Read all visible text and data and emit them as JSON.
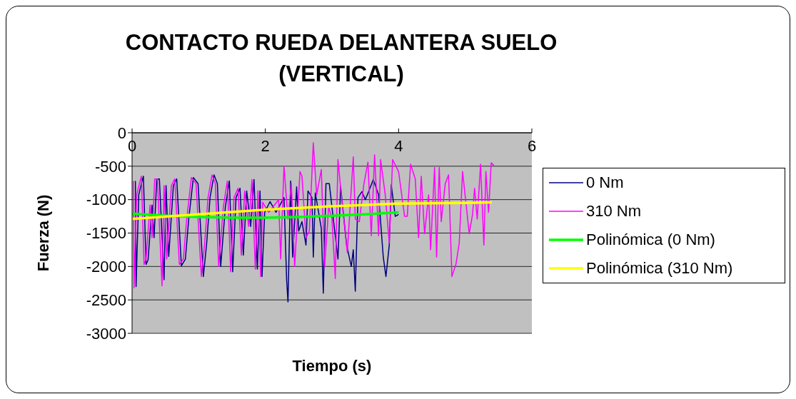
{
  "chart_data": {
    "type": "line",
    "title": "CONTACTO RUEDA DELANTERA SUELO (VERTICAL)",
    "xlabel": "Tiempo (s)",
    "ylabel": "Fuerza (N)",
    "xlim": [
      0,
      6
    ],
    "xticks": [
      0,
      2,
      4,
      6
    ],
    "ylim": [
      -3000,
      0
    ],
    "yticks": [
      0,
      -500,
      -1000,
      -1500,
      -2000,
      -2500,
      -3000
    ],
    "grid": "y",
    "legend": "right",
    "marker": "none",
    "line_style": "solid",
    "series": [
      {
        "name": "0 Nm",
        "color": "#000080",
        "x": [
          0.05,
          0.06,
          0.1,
          0.14,
          0.17,
          0.21,
          0.24,
          0.3,
          0.33,
          0.37,
          0.41,
          0.48,
          0.51,
          0.55,
          0.62,
          0.67,
          0.74,
          0.8,
          0.85,
          0.92,
          0.99,
          1.07,
          1.12,
          1.17,
          1.23,
          1.28,
          1.33,
          1.4,
          1.46,
          1.51,
          1.56,
          1.62,
          1.67,
          1.72,
          1.78,
          1.83,
          1.88,
          1.92,
          1.95,
          1.99,
          2.07,
          2.16,
          2.28,
          2.32,
          2.34,
          2.38,
          2.41,
          2.47,
          2.5,
          2.55,
          2.61,
          2.64,
          2.7,
          2.72,
          2.75,
          2.84,
          2.87,
          2.91,
          2.96,
          3.02,
          3.09,
          3.13,
          3.22,
          3.29,
          3.32,
          3.35,
          3.39,
          3.45,
          3.5,
          3.55,
          3.62,
          3.7,
          3.77,
          3.81,
          3.86,
          3.89,
          3.95,
          4.0
        ],
        "values": [
          -720,
          -2300,
          -930,
          -760,
          -650,
          -1970,
          -1900,
          -1080,
          -1570,
          -690,
          -690,
          -2200,
          -790,
          -1850,
          -790,
          -690,
          -1990,
          -1890,
          -1290,
          -670,
          -760,
          -2150,
          -1650,
          -970,
          -630,
          -760,
          -2000,
          -1110,
          -720,
          -2080,
          -970,
          -830,
          -1830,
          -870,
          -1400,
          -700,
          -2040,
          -870,
          -2150,
          -1190,
          -1030,
          -1190,
          -970,
          -2210,
          -2530,
          -720,
          -1860,
          -810,
          -1470,
          -1330,
          -1680,
          -870,
          -970,
          -1860,
          -900,
          -1430,
          -2400,
          -760,
          -760,
          -1290,
          -1890,
          -810,
          -1680,
          -2000,
          -1750,
          -2370,
          -970,
          -880,
          -1000,
          -880,
          -700,
          -930,
          -1860,
          -2150,
          -1680,
          -780,
          -1250,
          -1220
        ]
      },
      {
        "name": "310 Nm",
        "color": "#ff00ff",
        "x": [
          0.02,
          0.03,
          0.07,
          0.11,
          0.14,
          0.18,
          0.21,
          0.27,
          0.3,
          0.34,
          0.38,
          0.45,
          0.48,
          0.52,
          0.59,
          0.64,
          0.71,
          0.77,
          0.82,
          0.89,
          0.96,
          1.04,
          1.09,
          1.14,
          1.2,
          1.25,
          1.3,
          1.37,
          1.43,
          1.48,
          1.53,
          1.59,
          1.64,
          1.69,
          1.75,
          1.8,
          1.85,
          1.89,
          1.93,
          1.96,
          2.05,
          2.2,
          2.23,
          2.28,
          2.34,
          2.39,
          2.44,
          2.52,
          2.55,
          2.61,
          2.66,
          2.72,
          2.77,
          2.84,
          2.89,
          2.95,
          3.0,
          3.05,
          3.09,
          3.14,
          3.23,
          3.32,
          3.35,
          3.41,
          3.48,
          3.54,
          3.59,
          3.64,
          3.7,
          3.73,
          3.8,
          3.86,
          3.91,
          4.0,
          4.09,
          4.13,
          4.18,
          4.25,
          4.3,
          4.34,
          4.39,
          4.45,
          4.48,
          4.54,
          4.57,
          4.61,
          4.64,
          4.7,
          4.75,
          4.8,
          4.86,
          4.91,
          4.96,
          5.06,
          5.11,
          5.14,
          5.18,
          5.23,
          5.28,
          5.31,
          5.35,
          5.39,
          5.43
        ],
        "values": [
          -720,
          -2320,
          -930,
          -760,
          -650,
          -1970,
          -1890,
          -1080,
          -1570,
          -690,
          -690,
          -2290,
          -790,
          -1890,
          -790,
          -690,
          -1970,
          -1890,
          -1290,
          -670,
          -760,
          -2150,
          -1650,
          -970,
          -630,
          -760,
          -2000,
          -1110,
          -720,
          -2080,
          -970,
          -830,
          -1830,
          -870,
          -1400,
          -700,
          -2040,
          -870,
          -2150,
          -1040,
          -1190,
          -1000,
          -1890,
          -500,
          -1290,
          -760,
          -2000,
          -580,
          -650,
          -1570,
          -1470,
          -150,
          -930,
          -550,
          -2000,
          -1110,
          -1290,
          -2180,
          -400,
          -930,
          -1790,
          -360,
          -1290,
          -1330,
          -760,
          -440,
          -1540,
          -330,
          -1540,
          -400,
          -930,
          -1650,
          -400,
          -580,
          -1250,
          -1250,
          -470,
          -690,
          -1570,
          -650,
          -1510,
          -930,
          -1750,
          -520,
          -1860,
          -520,
          -1330,
          -760,
          -630,
          -2150,
          -1970,
          -1650,
          -580,
          -1510,
          -1220,
          -830,
          -1290,
          -470,
          -1680,
          -580,
          -1190,
          -450,
          -490
        ]
      },
      {
        "name": "Polinómica (0 Nm)",
        "color": "#00ff00",
        "x": [
          0,
          0.5,
          1,
          1.5,
          2,
          2.5,
          3,
          3.5,
          4
        ],
        "values": [
          -1210,
          -1240,
          -1260,
          -1270,
          -1270,
          -1260,
          -1240,
          -1220,
          -1190
        ]
      },
      {
        "name": "Polinómica (310 Nm)",
        "color": "#ffff00",
        "x": [
          0,
          1,
          2,
          3,
          4,
          5,
          5.4
        ],
        "values": [
          -1290,
          -1220,
          -1150,
          -1100,
          -1060,
          -1050,
          -1040
        ]
      }
    ]
  }
}
